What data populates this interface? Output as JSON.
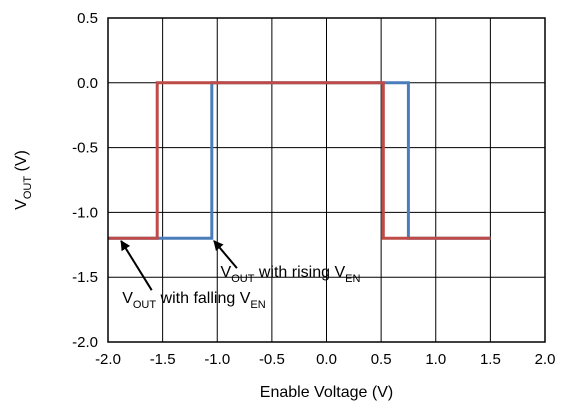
{
  "chart_data": {
    "type": "line",
    "title": "",
    "xlabel": "Enable Voltage (V)",
    "ylabel": {
      "main": "V",
      "sub": "OUT",
      "tail": " (V)"
    },
    "xlim": [
      -2.0,
      2.0
    ],
    "ylim": [
      -2.0,
      0.5
    ],
    "x_ticks": [
      "-2.0",
      "-1.5",
      "-1.0",
      "-0.5",
      "0.0",
      "0.5",
      "1.0",
      "1.5",
      "2.0"
    ],
    "y_ticks": [
      "0.5",
      "0.0",
      "-0.5",
      "-1.0",
      "-1.5",
      "-2.0"
    ],
    "x_tick_values": [
      -2.0,
      -1.5,
      -1.0,
      -0.5,
      0.0,
      0.5,
      1.0,
      1.5,
      2.0
    ],
    "y_tick_values": [
      0.5,
      0.0,
      -0.5,
      -1.0,
      -1.5,
      -2.0
    ],
    "grid": true,
    "legend": "none",
    "series": [
      {
        "color": "#4a7ebb",
        "x": [
          -2.0,
          -1.05,
          -1.05,
          0.75,
          0.75,
          1.5
        ],
        "y": [
          -1.2,
          -1.2,
          0.0,
          0.0,
          -1.2,
          -1.2
        ]
      },
      {
        "color": "#be4b48",
        "x": [
          -2.0,
          -1.55,
          -1.55,
          0.52,
          0.52,
          1.5
        ],
        "y": [
          -1.2,
          -1.2,
          0.0,
          0.0,
          -1.2,
          -1.2
        ]
      }
    ],
    "annotations": [
      {
        "parts": [
          {
            "text": "V",
            "sub": false
          },
          {
            "text": "OUT",
            "sub": true
          },
          {
            "text": " with rising V",
            "sub": false
          },
          {
            "text": "EN",
            "sub": true
          }
        ],
        "text_at": [
          -0.97,
          -1.5
        ],
        "arrow_from": [
          -0.82,
          -1.43
        ],
        "arrow_to": [
          -1.03,
          -1.22
        ]
      },
      {
        "parts": [
          {
            "text": "V",
            "sub": false
          },
          {
            "text": "OUT",
            "sub": true
          },
          {
            "text": " with falling V",
            "sub": false
          },
          {
            "text": "EN",
            "sub": true
          }
        ],
        "text_at": [
          -1.87,
          -1.7
        ],
        "arrow_from": [
          -1.6,
          -1.6
        ],
        "arrow_to": [
          -1.88,
          -1.22
        ]
      }
    ]
  }
}
